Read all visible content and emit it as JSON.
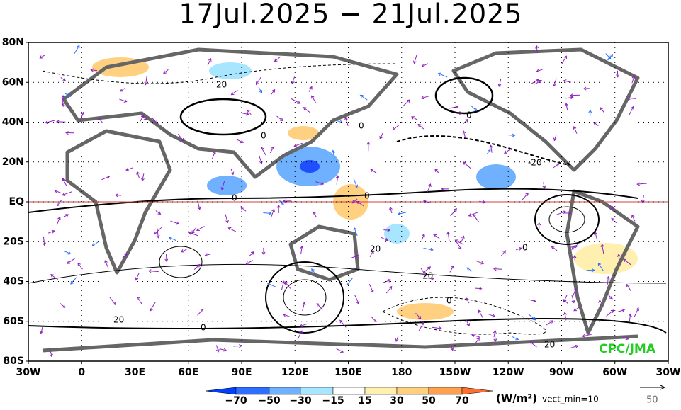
{
  "title": "17Jul.2025 − 21Jul.2025",
  "lat_labels": [
    "80N",
    "60N",
    "40N",
    "20N",
    "EQ",
    "20S",
    "40S",
    "60S",
    "80S"
  ],
  "lon_labels": [
    "30W",
    "0",
    "30E",
    "60E",
    "90E",
    "120E",
    "150E",
    "180",
    "150W",
    "120W",
    "90W",
    "60W",
    "30W"
  ],
  "contour_labels": [
    "20",
    "0",
    "0",
    "0",
    "-20",
    "0",
    "0",
    "20",
    "20",
    "0",
    "0",
    "20",
    "0",
    "20"
  ],
  "colorbar": {
    "labels": [
      "−70",
      "−50",
      "−30",
      "−15",
      "15",
      "30",
      "50",
      "70"
    ],
    "units": "(W/m²)",
    "vect_min": "vect_min=10"
  },
  "reference_vector": "50",
  "credit": "CPC/JMA"
}
